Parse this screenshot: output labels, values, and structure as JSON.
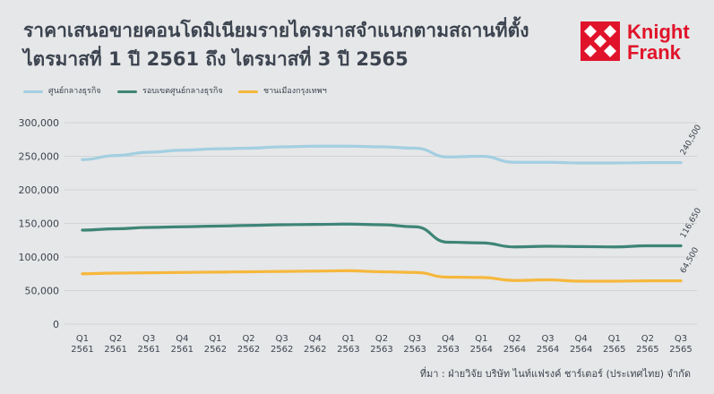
{
  "title_line1": "ราคาเสนอขายคอนโดมิเนียมรายไตรมาสจำแนกตามสถานที่ตั้ง",
  "title_line2": "ไตรมาสที่ 1 ปี 2561 ถึง ไตรมาสที่ 3 ปี 2565",
  "logo": {
    "line1": "Knight",
    "line2": "Frank",
    "color": "#e0132a",
    "icon": "knight-frank-diamond-logo"
  },
  "source": "ที่มา : ฝ่ายวิจัย บริษัท ไนท์แฟรงค์ ชาร์เตอร์ (ประเทศไทย) จำกัด",
  "chart_data": {
    "type": "line",
    "categories": [
      "Q1 2561",
      "Q2 2561",
      "Q3 2561",
      "Q4 2561",
      "Q1 2562",
      "Q2 2562",
      "Q3 2562",
      "Q4 2562",
      "Q1 2563",
      "Q2 2563",
      "Q3 2563",
      "Q4 2563",
      "Q1 2564",
      "Q2 2564",
      "Q3 2564",
      "Q4 2564",
      "Q1 2565",
      "Q2 2565",
      "Q3 2565"
    ],
    "category_labels": [
      [
        "Q1",
        "2561"
      ],
      [
        "Q2",
        "2561"
      ],
      [
        "Q3",
        "2561"
      ],
      [
        "Q4",
        "2561"
      ],
      [
        "Q1",
        "2562"
      ],
      [
        "Q2",
        "2562"
      ],
      [
        "Q3",
        "2562"
      ],
      [
        "Q4",
        "2562"
      ],
      [
        "Q1",
        "2563"
      ],
      [
        "Q2",
        "2563"
      ],
      [
        "Q3",
        "2563"
      ],
      [
        "Q4",
        "2563"
      ],
      [
        "Q1",
        "2564"
      ],
      [
        "Q2",
        "2564"
      ],
      [
        "Q3",
        "2564"
      ],
      [
        "Q4",
        "2564"
      ],
      [
        "Q1",
        "2565"
      ],
      [
        "Q2",
        "2565"
      ],
      [
        "Q3",
        "2565"
      ]
    ],
    "series": [
      {
        "name": "ศูนย์กลางธุรกิจ",
        "color": "#a3cfe1",
        "values": [
          245000,
          251000,
          256000,
          259000,
          261000,
          262000,
          264000,
          265000,
          265000,
          264000,
          262000,
          249000,
          250000,
          241000,
          241000,
          240000,
          240000,
          240500,
          240500
        ],
        "end_label": "240,500"
      },
      {
        "name": "รอบเขตศูนย์กลางธุรกิจ",
        "color": "#3e8577",
        "values": [
          140000,
          142000,
          144000,
          145000,
          146000,
          147000,
          148000,
          148500,
          149000,
          148000,
          145000,
          122000,
          121000,
          115000,
          116000,
          115500,
          115000,
          116650,
          116650
        ],
        "end_label": "116,650"
      },
      {
        "name": "ชานเมืองกรุงเทพฯ",
        "color": "#f6b73c",
        "values": [
          75000,
          76000,
          76500,
          77000,
          77500,
          78000,
          78500,
          79000,
          79500,
          78000,
          77000,
          70000,
          69500,
          65000,
          66000,
          64000,
          64000,
          64500,
          64500
        ],
        "end_label": "64,500"
      }
    ],
    "ylim": [
      0,
      300000
    ],
    "yticks": [
      "0",
      "50,000",
      "100,000",
      "150,000",
      "200,000",
      "250,000",
      "300,000"
    ],
    "grid": true,
    "legend_position": "top-left"
  }
}
